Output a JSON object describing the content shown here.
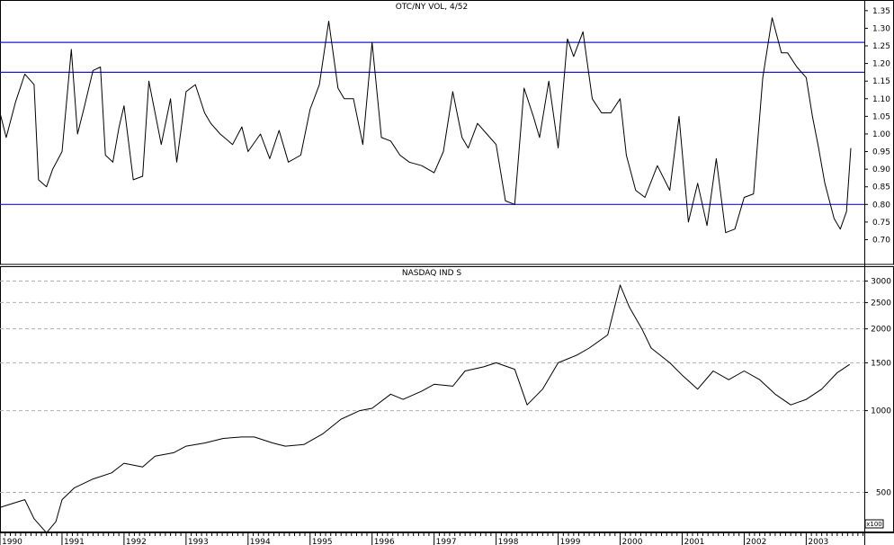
{
  "chart_data": [
    {
      "type": "line",
      "title": "OTC/NY VOL, 4/52",
      "ylim": [
        0.64,
        1.37
      ],
      "yticks": [
        1.35,
        1.3,
        1.25,
        1.2,
        1.15,
        1.1,
        1.05,
        1.0,
        0.95,
        0.9,
        0.85,
        0.8,
        0.75,
        0.7
      ],
      "ytick_labels": [
        "1.35",
        "1.30",
        "1.25",
        "1.20",
        "1.15",
        "1.10",
        "1.05",
        "1.00",
        "0.95",
        "0.90",
        "0.85",
        "0.80",
        "0.75",
        "0.70"
      ],
      "reference_lines": [
        1.26,
        1.175,
        0.8
      ],
      "reference_color": "#1a1acc",
      "line_color": "#000000",
      "x": [
        1990.0,
        1990.1,
        1990.25,
        1990.4,
        1990.55,
        1990.62,
        1990.75,
        1990.85,
        1991.0,
        1991.15,
        1991.25,
        1991.35,
        1991.5,
        1991.62,
        1991.7,
        1991.82,
        1991.92,
        1992.0,
        1992.15,
        1992.3,
        1992.4,
        1992.6,
        1992.75,
        1992.85,
        1993.0,
        1993.15,
        1993.3,
        1993.4,
        1993.55,
        1993.75,
        1993.9,
        1994.0,
        1994.2,
        1994.35,
        1994.5,
        1994.65,
        1994.85,
        1995.0,
        1995.15,
        1995.3,
        1995.45,
        1995.55,
        1995.7,
        1995.85,
        1996.0,
        1996.15,
        1996.3,
        1996.45,
        1996.6,
        1996.8,
        1997.0,
        1997.15,
        1997.3,
        1997.45,
        1997.55,
        1997.7,
        1997.85,
        1998.0,
        1998.15,
        1998.3,
        1998.45,
        1998.6,
        1998.7,
        1998.85,
        1999.0,
        1999.15,
        1999.25,
        1999.4,
        1999.55,
        1999.7,
        1999.85,
        2000.0,
        2000.1,
        2000.25,
        2000.4,
        2000.6,
        2000.8,
        2000.95,
        2001.1,
        2001.25,
        2001.4,
        2001.55,
        2001.7,
        2001.85,
        2002.0,
        2002.15,
        2002.3,
        2002.45,
        2002.6,
        2002.7,
        2002.85,
        2003.0,
        2003.1,
        2003.2,
        2003.3,
        2003.45,
        2003.55,
        2003.65,
        2003.72
      ],
      "values": [
        1.06,
        0.99,
        1.09,
        1.17,
        1.14,
        0.87,
        0.85,
        0.9,
        0.95,
        1.24,
        1.0,
        1.07,
        1.18,
        1.19,
        0.94,
        0.92,
        1.02,
        1.08,
        0.87,
        0.88,
        1.15,
        0.97,
        1.1,
        0.92,
        1.12,
        1.14,
        1.06,
        1.03,
        1.0,
        0.97,
        1.02,
        0.95,
        1.0,
        0.93,
        1.01,
        0.92,
        0.94,
        1.07,
        1.14,
        1.32,
        1.13,
        1.1,
        1.1,
        0.97,
        1.26,
        0.99,
        0.98,
        0.94,
        0.92,
        0.91,
        0.89,
        0.95,
        1.12,
        0.99,
        0.96,
        1.03,
        1.0,
        0.97,
        0.81,
        0.8,
        1.13,
        1.05,
        0.99,
        1.15,
        0.96,
        1.27,
        1.22,
        1.29,
        1.1,
        1.06,
        1.06,
        1.1,
        0.94,
        0.84,
        0.82,
        0.91,
        0.84,
        1.05,
        0.75,
        0.86,
        0.74,
        0.93,
        0.72,
        0.73,
        0.82,
        0.83,
        1.16,
        1.33,
        1.23,
        1.23,
        1.19,
        1.16,
        1.05,
        0.96,
        0.86,
        0.76,
        0.73,
        0.78,
        0.96
      ]
    },
    {
      "type": "line",
      "title": "NASDAQ IND S",
      "yscale": "log",
      "ylim": [
        370,
        3300
      ],
      "yticks": [
        3000,
        2500,
        2000,
        1500,
        1000,
        500
      ],
      "ytick_labels": [
        "3000",
        "2500",
        "2000",
        "1500",
        "1000",
        "500"
      ],
      "grid": "horizontal dashed",
      "unit_label": "x100",
      "line_color": "#000000",
      "x": [
        1990.0,
        1990.2,
        1990.4,
        1990.55,
        1990.75,
        1990.9,
        1991.0,
        1991.2,
        1991.5,
        1991.8,
        1992.0,
        1992.3,
        1992.5,
        1992.8,
        1993.0,
        1993.3,
        1993.6,
        1993.9,
        1994.1,
        1994.4,
        1994.6,
        1994.9,
        1995.2,
        1995.5,
        1995.8,
        1996.0,
        1996.3,
        1996.5,
        1996.8,
        1997.0,
        1997.3,
        1997.5,
        1997.8,
        1998.0,
        1998.3,
        1998.5,
        1998.75,
        1999.0,
        1999.3,
        1999.5,
        1999.8,
        2000.0,
        2000.15,
        2000.35,
        2000.5,
        2000.8,
        2001.0,
        2001.25,
        2001.5,
        2001.75,
        2002.0,
        2002.25,
        2002.5,
        2002.75,
        2003.0,
        2003.25,
        2003.5,
        2003.7
      ],
      "values": [
        440,
        455,
        470,
        400,
        355,
        390,
        470,
        520,
        560,
        590,
        640,
        620,
        680,
        700,
        740,
        760,
        790,
        800,
        800,
        760,
        740,
        750,
        820,
        930,
        1000,
        1020,
        1150,
        1100,
        1180,
        1250,
        1230,
        1400,
        1450,
        1500,
        1420,
        1050,
        1200,
        1500,
        1600,
        1700,
        1900,
        2900,
        2400,
        2000,
        1700,
        1500,
        1350,
        1200,
        1400,
        1300,
        1400,
        1300,
        1150,
        1050,
        1100,
        1200,
        1380,
        1480
      ]
    }
  ],
  "x_axis": {
    "ticks": [
      1990,
      1991,
      1992,
      1993,
      1994,
      1995,
      1996,
      1997,
      1998,
      1999,
      2000,
      2001,
      2002,
      2003
    ],
    "labels": [
      "1990",
      "1991",
      "1992",
      "1993",
      "1994",
      "1995",
      "1996",
      "1997",
      "1998",
      "1999",
      "2000",
      "2001",
      "2002",
      "2003"
    ],
    "range": [
      1990.0,
      2003.85
    ]
  }
}
